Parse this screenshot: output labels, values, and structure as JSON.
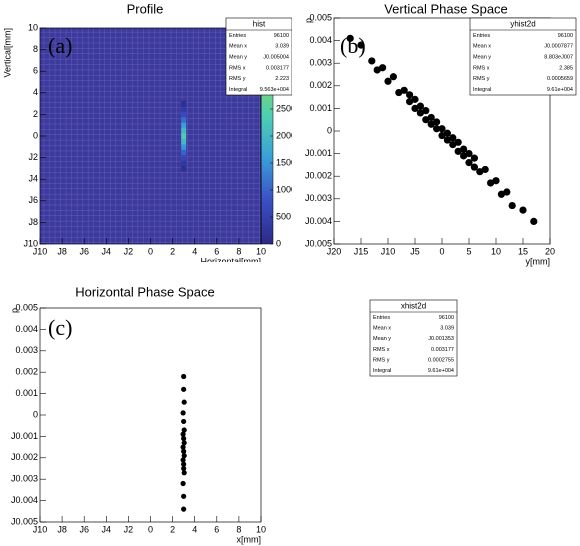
{
  "chart_data": [
    {
      "type": "heatmap",
      "title": "Profile",
      "panel_label": "(a)",
      "xlabel": "Horizontal[mm]",
      "ylabel": "Vertical[mm]",
      "x": [
        3,
        3,
        3,
        3,
        3,
        3,
        3,
        3,
        3,
        3,
        3,
        3,
        3
      ],
      "y": [
        -3,
        -2.5,
        -2,
        -1.5,
        -1,
        -0.5,
        0,
        0.5,
        1,
        1.5,
        2,
        2.5,
        3
      ],
      "values": [
        100,
        300,
        600,
        1000,
        1500,
        2000,
        2300,
        2000,
        1600,
        1100,
        700,
        350,
        120
      ],
      "colorscale": [
        "#2b2b87",
        "#3a4fc4",
        "#3aa0d8",
        "#4fd0b0",
        "#8ed65a",
        "#e8e23a"
      ],
      "xlim": [
        -10,
        10
      ],
      "ylim": [
        -10,
        10
      ],
      "zlim": [
        0,
        4000
      ],
      "xticks": [
        {
          "value": -10,
          "label": "J10"
        },
        {
          "value": -8,
          "label": "J8"
        },
        {
          "value": -6,
          "label": "J6"
        },
        {
          "value": -4,
          "label": "J4"
        },
        {
          "value": -2,
          "label": "J2"
        },
        0,
        2,
        4,
        6,
        8,
        10
      ],
      "yticks": [
        {
          "value": -10,
          "label": "J10"
        },
        {
          "value": -8,
          "label": "J8"
        },
        {
          "value": -6,
          "label": "J6"
        },
        {
          "value": -4,
          "label": "J4"
        },
        {
          "value": -2,
          "label": "J2"
        },
        0,
        2,
        4,
        6,
        8,
        10
      ],
      "zticks": [
        0,
        500,
        1000,
        1500,
        2000,
        2500
      ],
      "stats": {
        "name": "hist",
        "rows": [
          [
            "Entries",
            "96100"
          ],
          [
            "Mean x",
            "3.039"
          ],
          [
            "Mean y",
            "J0.005004"
          ],
          [
            "RMS x",
            "0.003177"
          ],
          [
            "RMS y",
            "2.223"
          ],
          [
            "Integral",
            "9.563e+004"
          ]
        ]
      }
    },
    {
      "type": "scatter",
      "title": "Vertical Phase Space",
      "panel_label": "(b)",
      "xlabel": "y[mm]",
      "ylabel": "p",
      "color": "#000000",
      "x": [
        -17,
        -15,
        -13,
        -12,
        -11,
        -10,
        -9,
        -8,
        -7,
        -6,
        -6,
        -5,
        -5,
        -4,
        -4,
        -3,
        -3,
        -2,
        -2,
        -1,
        -1,
        0,
        0,
        1,
        1,
        2,
        2,
        3,
        3,
        4,
        4,
        5,
        5,
        6,
        6,
        7,
        8,
        9,
        10,
        11,
        12,
        13,
        15,
        17
      ],
      "values": [
        0.0041,
        0.0038,
        0.0031,
        0.0027,
        0.0028,
        0.0022,
        0.0024,
        0.0017,
        0.0018,
        0.0016,
        0.0013,
        0.0014,
        0.001,
        0.0011,
        0.0008,
        0.0009,
        0.0005,
        0.0006,
        0.0003,
        0.0004,
        0.0001,
        0.0001,
        -0.0002,
        -0.0001,
        -0.0004,
        -0.0003,
        -0.0006,
        -0.0005,
        -0.0009,
        -0.0008,
        -0.0011,
        -0.001,
        -0.0014,
        -0.0012,
        -0.0016,
        -0.0018,
        -0.0017,
        -0.0023,
        -0.0022,
        -0.0028,
        -0.0027,
        -0.0033,
        -0.0035,
        -0.004
      ],
      "xlim": [
        -20,
        20
      ],
      "ylim": [
        -0.005,
        0.005
      ],
      "xticks": [
        {
          "value": -20,
          "label": "J20"
        },
        {
          "value": -15,
          "label": "J15"
        },
        {
          "value": -10,
          "label": "J10"
        },
        {
          "value": -5,
          "label": "J5"
        },
        0,
        5,
        10,
        15,
        20
      ],
      "yticks": [
        0.005,
        0.004,
        0.003,
        0.002,
        0.001,
        0,
        {
          "value": -0.001,
          "label": "J0.001"
        },
        {
          "value": -0.002,
          "label": "J0.002"
        },
        {
          "value": -0.003,
          "label": "J0.003"
        },
        {
          "value": -0.004,
          "label": "J0.004"
        },
        {
          "value": -0.005,
          "label": "J0.005"
        }
      ],
      "stats": {
        "name": "yhist2d",
        "rows": [
          [
            "Entries",
            "96100"
          ],
          [
            "Mean x",
            "J0.0007877"
          ],
          [
            "Mean y",
            "8.803eJ007"
          ],
          [
            "RMS x",
            "2.385"
          ],
          [
            "RMS y",
            "0.0005659"
          ],
          [
            "Integral",
            "9.61e+004"
          ]
        ]
      }
    },
    {
      "type": "scatter",
      "title": "Horizontal Phase Space",
      "panel_label": "(c)",
      "xlabel": "x[mm]",
      "ylabel": "p",
      "color": "#000000",
      "x": [
        3,
        3,
        3.05,
        2.95,
        3,
        3.05,
        2.95,
        3,
        3.05,
        2.95,
        3,
        3.05,
        2.95,
        3,
        3,
        3.05,
        2.95,
        3,
        3
      ],
      "values": [
        0.0018,
        0.0012,
        0.0006,
        0.0001,
        -0.0003,
        -0.0007,
        -0.0009,
        -0.0011,
        -0.0013,
        -0.0015,
        -0.0017,
        -0.0019,
        -0.0021,
        -0.0023,
        -0.0025,
        -0.0027,
        -0.0032,
        -0.0038,
        -0.0044
      ],
      "xlim": [
        -10,
        10
      ],
      "ylim": [
        -0.005,
        0.005
      ],
      "xticks": [
        {
          "value": -10,
          "label": "J10"
        },
        {
          "value": -8,
          "label": "J8"
        },
        {
          "value": -6,
          "label": "J6"
        },
        {
          "value": -4,
          "label": "J4"
        },
        {
          "value": -2,
          "label": "J2"
        },
        0,
        2,
        4,
        6,
        8,
        10
      ],
      "yticks": [
        0.005,
        0.004,
        0.003,
        0.002,
        0.001,
        0,
        {
          "value": -0.001,
          "label": "J0.001"
        },
        {
          "value": -0.002,
          "label": "J0.002"
        },
        {
          "value": -0.003,
          "label": "J0.003"
        },
        {
          "value": -0.004,
          "label": "J0.004"
        },
        {
          "value": -0.005,
          "label": "J0.005"
        }
      ],
      "stats": {
        "name": "xhist2d",
        "rows": [
          [
            "Entries",
            "96100"
          ],
          [
            "Mean x",
            "3.039"
          ],
          [
            "Mean y",
            "J0.001353"
          ],
          [
            "RMS x",
            "0.003177"
          ],
          [
            "RMS y",
            "0.0002755"
          ],
          [
            "Integral",
            "9.61e+004"
          ]
        ]
      }
    }
  ]
}
